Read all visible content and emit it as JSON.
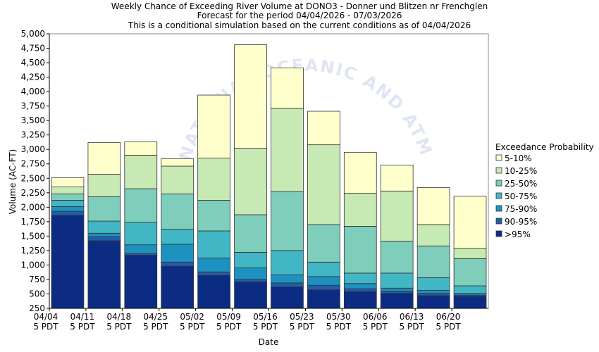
{
  "watermark": "NATIONAL OCEANIC AND ATMOSPHERIC ADMINISTRATION",
  "chart_data": {
    "type": "bar",
    "stacked": true,
    "title": "Weekly Chance of Exceeding River Volume at DONO3 - Donner und Blitzen nr Frenchglen",
    "subtitle1": "Forecast for the period 04/04/2026 - 07/03/2026",
    "subtitle2": "This is a conditional simulation based on the current conditions as of 04/04/2026",
    "xlabel": "Date",
    "ylabel": "Volume (AC-FT)",
    "ylim": [
      250,
      5000
    ],
    "ytick_step": 250,
    "x_ticks": [
      {
        "l1": "04/04",
        "l2": "5 PDT"
      },
      {
        "l1": "04/11",
        "l2": "5 PDT"
      },
      {
        "l1": "04/18",
        "l2": "5 PDT"
      },
      {
        "l1": "04/25",
        "l2": "5 PDT"
      },
      {
        "l1": "05/02",
        "l2": "5 PDT"
      },
      {
        "l1": "05/09",
        "l2": "5 PDT"
      },
      {
        "l1": "05/16",
        "l2": "5 PDT"
      },
      {
        "l1": "05/23",
        "l2": "5 PDT"
      },
      {
        "l1": "05/30",
        "l2": "5 PDT"
      },
      {
        "l1": "06/06",
        "l2": "5 PDT"
      },
      {
        "l1": "06/13",
        "l2": "5 PDT"
      },
      {
        "l1": "06/20",
        "l2": "5 PDT"
      }
    ],
    "legend": {
      "title": "Exceedance Probability",
      "placement": "right",
      "entries": [
        {
          "label": "5-10%",
          "color": "#ffffcc"
        },
        {
          "label": "10-25%",
          "color": "#c7e9b4"
        },
        {
          "label": "25-50%",
          "color": "#7fcdbb"
        },
        {
          "label": "50-75%",
          "color": "#41b6c4"
        },
        {
          "label": "75-90%",
          "color": "#1d91c0"
        },
        {
          "label": "90-95%",
          "color": "#225ea8"
        },
        {
          "label": ">95%",
          "color": "#0c2c84"
        }
      ]
    },
    "series_order_bottom_to_top": [
      ">95%",
      "90-95%",
      "75-90%",
      "50-75%",
      "25-50%",
      "10-25%",
      "5-10%"
    ],
    "weeks": [
      {
        "label": "04/04",
        "levels": [
          1860,
          1930,
          2010,
          2120,
          2230,
          2350,
          2510
        ]
      },
      {
        "label": "04/11",
        "levels": [
          1420,
          1490,
          1550,
          1760,
          2180,
          2570,
          3120
        ]
      },
      {
        "label": "04/18",
        "levels": [
          1170,
          1200,
          1350,
          1740,
          2320,
          2900,
          3130
        ]
      },
      {
        "label": "04/25",
        "levels": [
          980,
          1050,
          1360,
          1620,
          2230,
          2710,
          2840
        ]
      },
      {
        "label": "05/02",
        "levels": [
          820,
          880,
          1120,
          1590,
          2120,
          2850,
          3940
        ]
      },
      {
        "label": "05/09",
        "levels": [
          710,
          750,
          950,
          1220,
          1870,
          3020,
          4810
        ]
      },
      {
        "label": "05/16",
        "levels": [
          620,
          690,
          830,
          1250,
          2270,
          3710,
          4410
        ]
      },
      {
        "label": "05/23",
        "levels": [
          570,
          650,
          800,
          1050,
          1700,
          3080,
          3660
        ]
      },
      {
        "label": "05/30",
        "levels": [
          540,
          590,
          680,
          860,
          1670,
          2240,
          2950
        ]
      },
      {
        "label": "06/06",
        "levels": [
          510,
          550,
          600,
          860,
          1410,
          2280,
          2730
        ]
      },
      {
        "label": "06/13",
        "levels": [
          470,
          510,
          560,
          780,
          1330,
          1700,
          2340
        ]
      },
      {
        "label": "06/20",
        "levels": [
          460,
          480,
          510,
          640,
          1110,
          1290,
          2190
        ]
      }
    ]
  }
}
